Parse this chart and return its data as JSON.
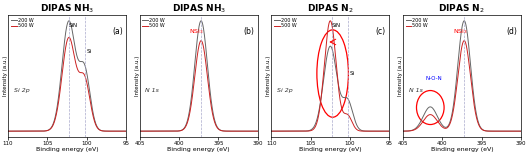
{
  "panels": [
    {
      "title": "DIPAS NH$_3$",
      "label": "(a)",
      "xlabel": "Binding energy (eV)",
      "ylabel": "Intensity (a.u.)",
      "axis_label": "Si 2p",
      "x_min": 110,
      "x_max": 95,
      "x_ticks": [
        110,
        105,
        100,
        95
      ],
      "dashed_line1": 102.3,
      "dashed_line2": 100.3,
      "n_o_n_label": false,
      "has_circle": false,
      "is_n2": false,
      "is_n1s": false
    },
    {
      "title": "DIPAS NH$_3$",
      "label": "(b)",
      "xlabel": "Binding energy (eV)",
      "ylabel": "Intensity (a.u.)",
      "axis_label": "N 1s",
      "x_min": 405,
      "x_max": 390,
      "x_ticks": [
        405,
        400,
        395,
        390
      ],
      "dashed_line1": 397.2,
      "n_o_n_label": false,
      "has_circle": false,
      "is_n2": false,
      "is_n1s": true
    },
    {
      "title": "DIPAS N$_2$",
      "label": "(c)",
      "xlabel": "Binding energy (eV)",
      "ylabel": "Intensity (a.u.)",
      "axis_label": "Si 2p",
      "x_min": 110,
      "x_max": 95,
      "x_ticks": [
        110,
        105,
        100,
        95
      ],
      "dashed_line1": 102.3,
      "dashed_line2": 100.3,
      "n_o_n_label": false,
      "has_circle": true,
      "is_n2": true,
      "is_n1s": false
    },
    {
      "title": "DIPAS N$_2$",
      "label": "(d)",
      "xlabel": "Binding energy (eV)",
      "ylabel": "Intensity (a.u.)",
      "axis_label": "N 1s",
      "x_min": 405,
      "x_max": 390,
      "x_ticks": [
        405,
        400,
        395,
        390
      ],
      "dashed_line1": 397.2,
      "n_o_n_label": true,
      "has_circle": true,
      "is_n2": true,
      "is_n1s": true
    }
  ],
  "color_200W": "#666666",
  "color_500W": "#cc2222",
  "legend_200W": "200 W",
  "legend_500W": "500 W",
  "title_bold": true,
  "background_color": "#ffffff",
  "lw": 0.7
}
